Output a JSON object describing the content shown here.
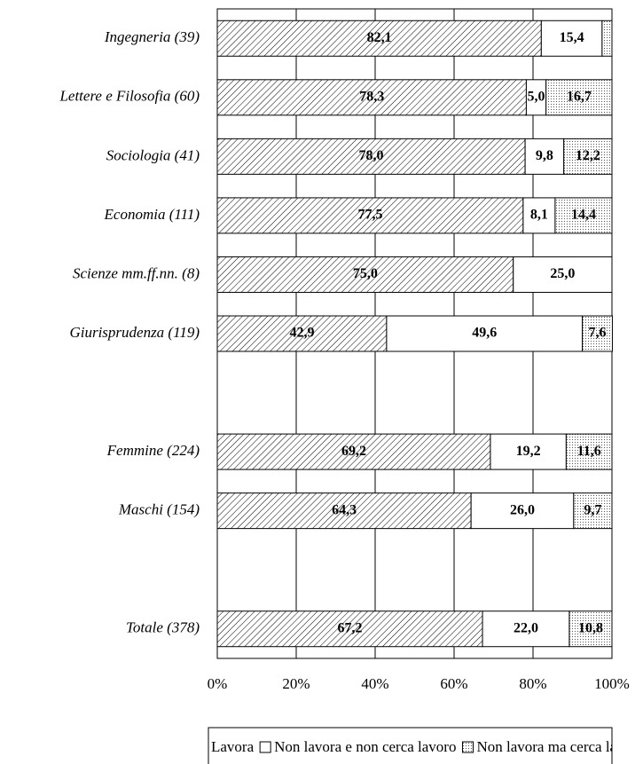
{
  "chart_data": {
    "type": "stacked-barh",
    "categories": [
      "Ingegneria (39)",
      "Lettere e Filosofia (60)",
      "Sociologia (41)",
      "Economia (111)",
      "Scienze mm.ff.nn. (8)",
      "Giurisprudenza (119)",
      null,
      "Femmine (224)",
      "Maschi (154)",
      null,
      "Totale (378)"
    ],
    "series": [
      {
        "name": "Lavora",
        "color": "#000000",
        "pattern": "hatch",
        "values": [
          82.1,
          78.3,
          78.0,
          77.5,
          75.0,
          42.9,
          null,
          69.2,
          64.3,
          null,
          67.2
        ],
        "value_labels": [
          "82,1",
          "78,3",
          "78,0",
          "77,5",
          "75,0",
          "42,9",
          null,
          "69,2",
          "64,3",
          null,
          "67,2"
        ]
      },
      {
        "name": "Non lavora e non cerca lavoro",
        "color": "#ffffff",
        "pattern": "solid",
        "values": [
          15.4,
          5.0,
          9.8,
          8.1,
          25.0,
          49.6,
          null,
          19.2,
          26.0,
          null,
          22.0
        ],
        "value_labels": [
          "15,4",
          "5,0",
          "9,8",
          "8,1",
          "25,0",
          "49,6",
          null,
          "19,2",
          "26,0",
          null,
          "22,0"
        ]
      },
      {
        "name": "Non lavora ma cerca lavoro",
        "color": "#000000",
        "pattern": "dots",
        "values": [
          2.5,
          16.7,
          12.2,
          14.4,
          0,
          7.6,
          null,
          11.6,
          9.7,
          null,
          10.8
        ],
        "value_labels": [
          null,
          "16,7",
          "12,2",
          "14,4",
          null,
          "7,6",
          null,
          "11,6",
          "9,7",
          null,
          "10,8"
        ]
      }
    ],
    "xlim": [
      0,
      100
    ],
    "xticks": [
      {
        "value": 0,
        "label": "0%"
      },
      {
        "value": 20,
        "label": "20%"
      },
      {
        "value": 40,
        "label": "40%"
      },
      {
        "value": 60,
        "label": "60%"
      },
      {
        "value": 80,
        "label": "80%"
      },
      {
        "value": 100,
        "label": "100%"
      }
    ],
    "grid": true,
    "legend": "bottom"
  }
}
